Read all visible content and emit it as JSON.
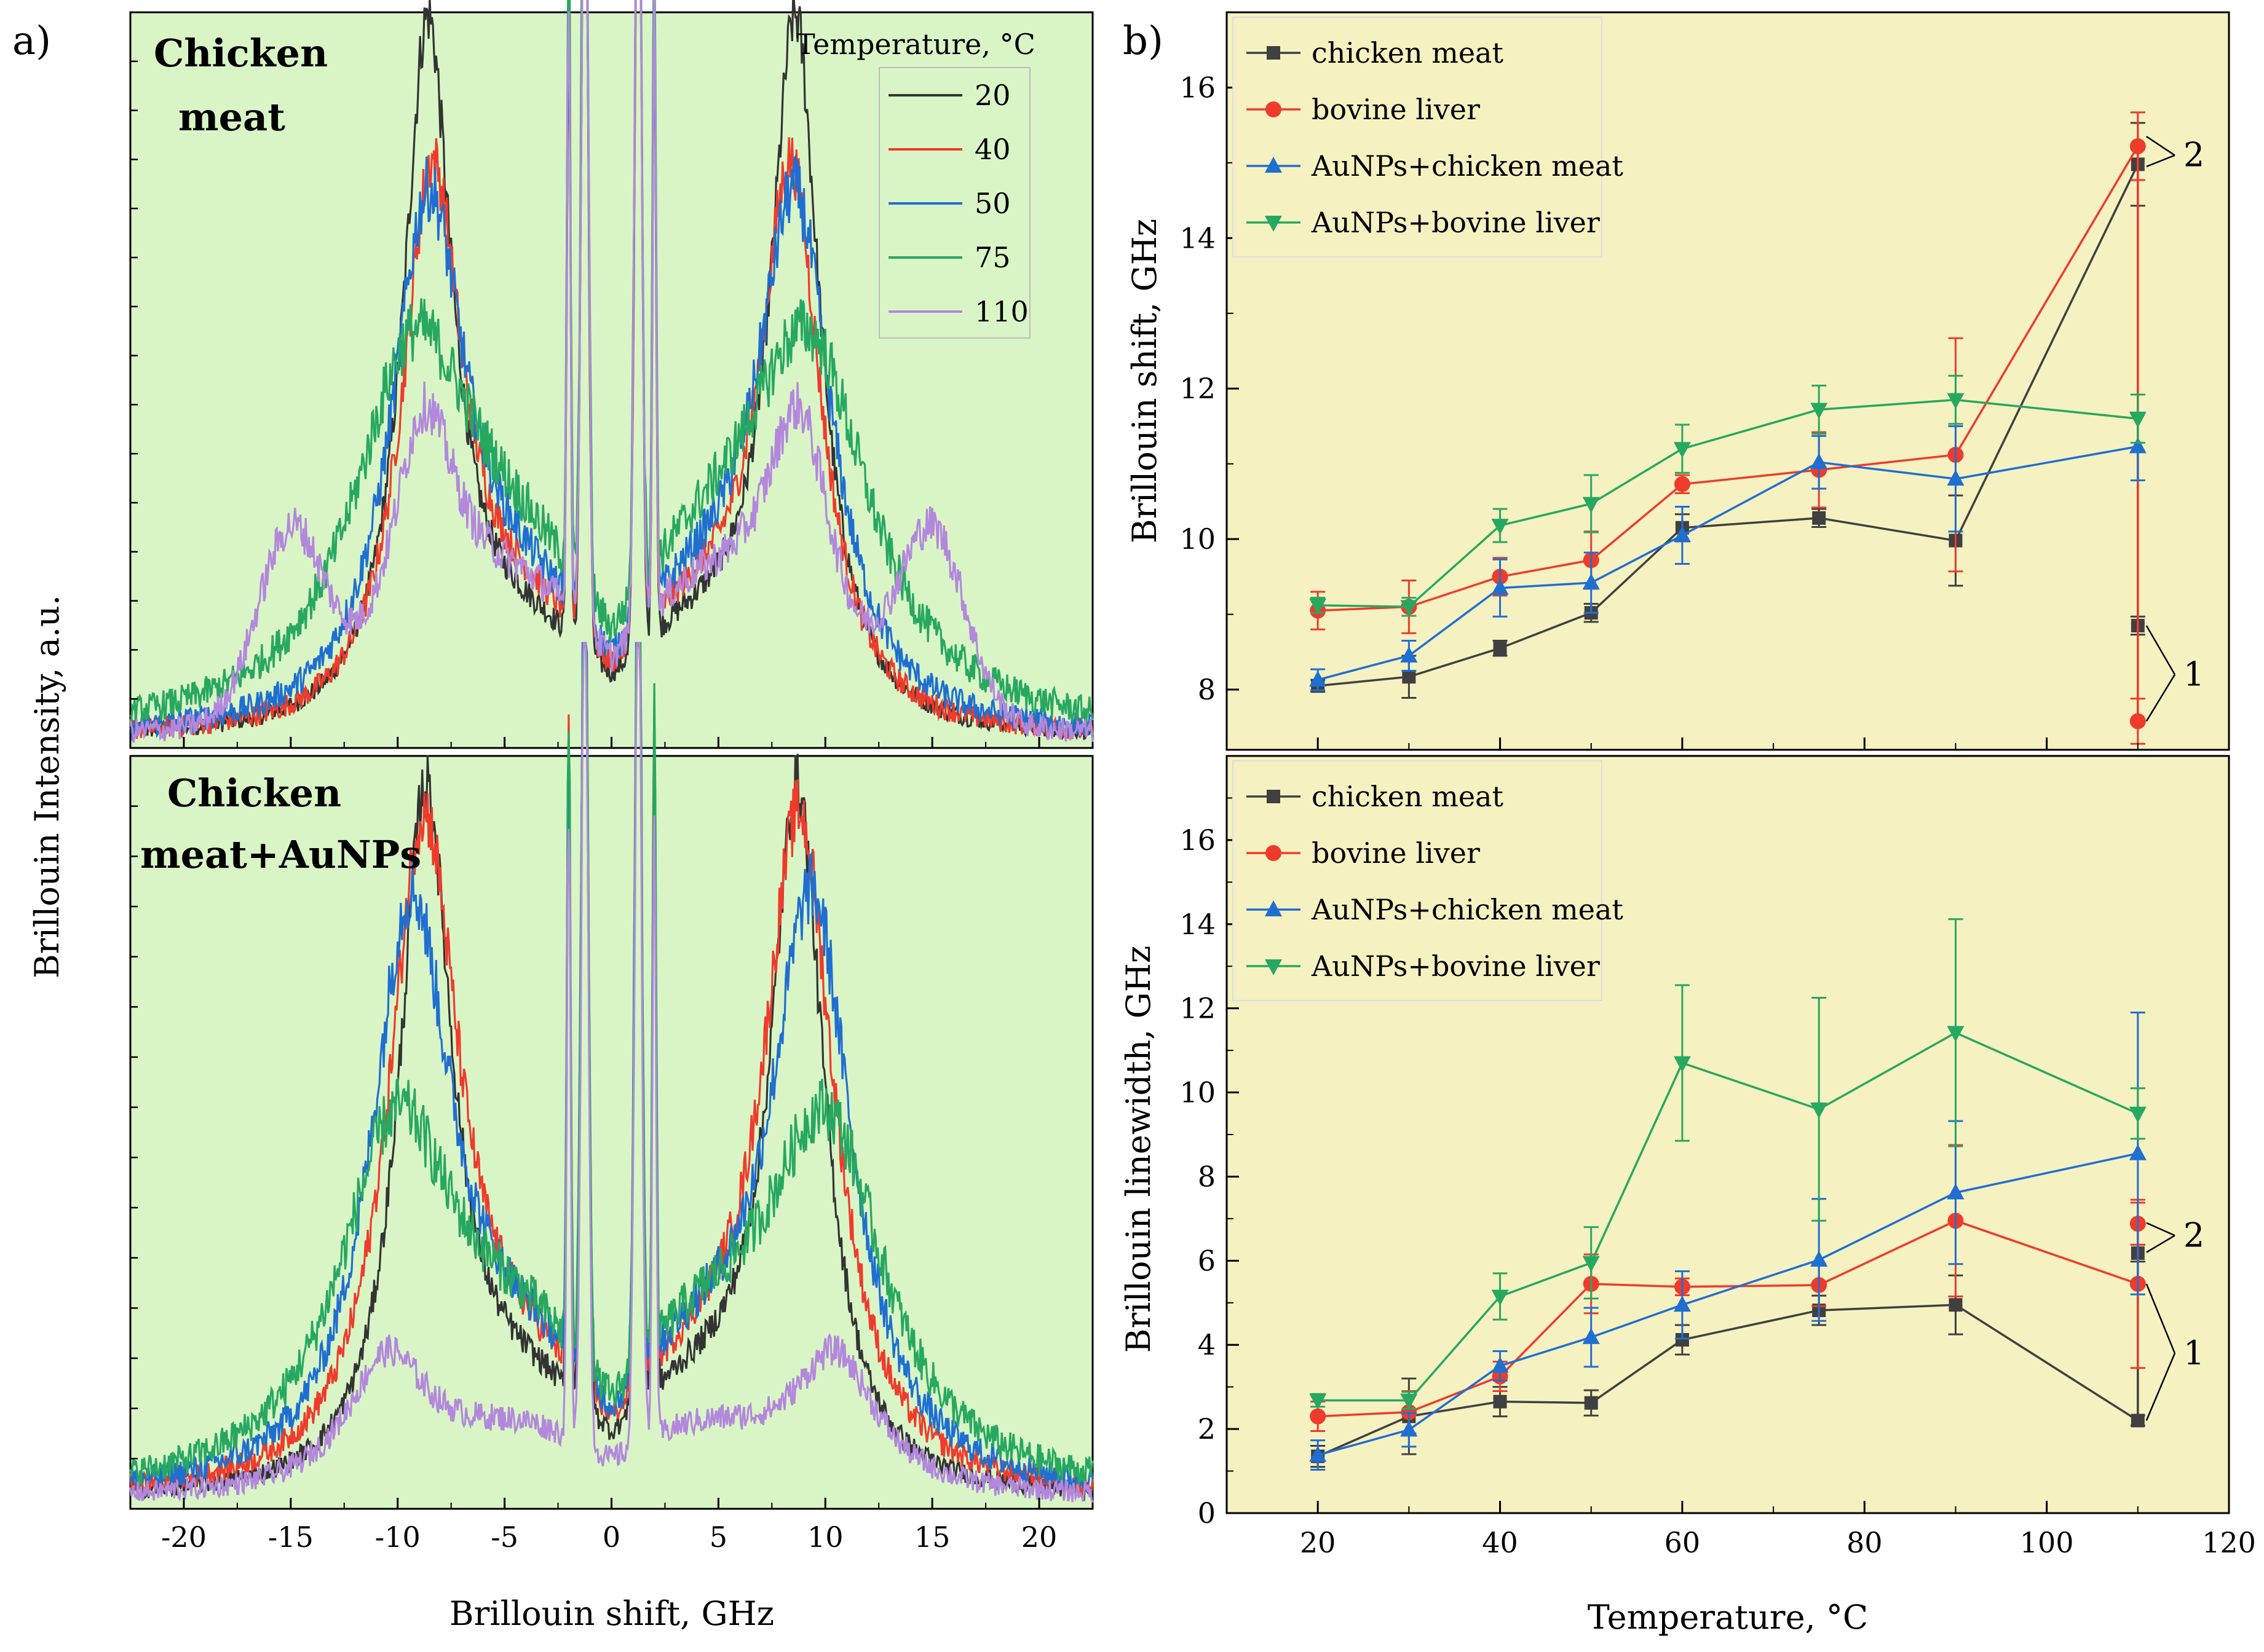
{
  "figure": {
    "panel_a_label": "a)",
    "panel_b_label": "b)"
  },
  "chart_data": [
    {
      "id": "a-top",
      "type": "line",
      "title": "Chicken meat",
      "title_lines": [
        "Chicken",
        "meat"
      ],
      "xlabel": "Brillouin shift, GHz",
      "ylabel": "Brillouin  Intensity, a.u.",
      "xlim": [
        -22.5,
        22.5
      ],
      "ylim": [
        0,
        1
      ],
      "xticks": [
        -20,
        -15,
        -10,
        -5,
        0,
        5,
        10,
        15,
        20
      ],
      "legend_title": "Temperature, °C",
      "colors": {
        "background": "#d9f5c6"
      },
      "series": [
        {
          "name": "20",
          "color": "#333333",
          "peak_pos": 8.6,
          "peak_h": 0.93,
          "width": 1.4,
          "bg": 0.12,
          "noise": 0.03
        },
        {
          "name": "40",
          "color": "#ef3b2c",
          "peak_pos": 8.4,
          "peak_h": 0.72,
          "width": 1.7,
          "bg": 0.14,
          "noise": 0.035
        },
        {
          "name": "50",
          "color": "#1f6fd1",
          "peak_pos": 8.6,
          "peak_h": 0.68,
          "width": 2.1,
          "bg": 0.15,
          "noise": 0.04
        },
        {
          "name": "75",
          "color": "#27a860",
          "peak_pos": 9.3,
          "peak_h": 0.5,
          "width": 3.6,
          "bg": 0.16,
          "noise": 0.045
        },
        {
          "name": "110",
          "color": "#b388dc",
          "peak_pos": 8.8,
          "peak_h": 0.38,
          "width": 2.0,
          "bg": 0.17,
          "noise": 0.04,
          "sat_pos": 15.0,
          "sat_h": 0.25
        }
      ]
    },
    {
      "id": "a-bottom",
      "type": "line",
      "title": "Chicken meat+AuNPs",
      "title_lines": [
        "Chicken",
        "meat+AuNPs"
      ],
      "xlabel": "Brillouin shift, GHz",
      "xlim": [
        -22.5,
        22.5
      ],
      "ylim": [
        0,
        1
      ],
      "xticks": [
        -20,
        -15,
        -10,
        -5,
        0,
        5,
        10,
        15,
        20
      ],
      "colors": {
        "background": "#d9f5c6"
      },
      "series": [
        {
          "name": "20",
          "color": "#333333",
          "peak_pos": 8.7,
          "peak_h": 0.9,
          "width": 1.5,
          "bg": 0.12,
          "noise": 0.03
        },
        {
          "name": "40",
          "color": "#ef3b2c",
          "peak_pos": 8.8,
          "peak_h": 0.86,
          "width": 2.0,
          "bg": 0.13,
          "noise": 0.035
        },
        {
          "name": "50",
          "color": "#1f6fd1",
          "peak_pos": 9.4,
          "peak_h": 0.76,
          "width": 2.3,
          "bg": 0.15,
          "noise": 0.04
        },
        {
          "name": "75",
          "color": "#27a860",
          "peak_pos": 10.1,
          "peak_h": 0.48,
          "width": 3.4,
          "bg": 0.16,
          "noise": 0.045
        },
        {
          "name": "110",
          "color": "#b388dc",
          "peak_pos": 10.5,
          "peak_h": 0.18,
          "width": 2.4,
          "bg": 0.08,
          "noise": 0.035
        }
      ]
    },
    {
      "id": "b-top",
      "type": "line",
      "xlabel": "",
      "ylabel": "Brillouin shift, GHz",
      "xlim": [
        10,
        120
      ],
      "ylim": [
        7.2,
        17.0
      ],
      "xticks": [
        20,
        40,
        60,
        80,
        100,
        120
      ],
      "yticks": [
        8,
        10,
        12,
        14,
        16
      ],
      "colors": {
        "background": "#f6f1c1"
      },
      "annotations": [
        {
          "text": "2",
          "x": 115,
          "y": 15.1
        },
        {
          "text": "1",
          "x": 115,
          "y": 8.2
        }
      ],
      "series": [
        {
          "name": "chicken meat",
          "color": "#404040",
          "marker": "square",
          "x": [
            20,
            30,
            40,
            50,
            60,
            75,
            90,
            110
          ],
          "y": [
            8.05,
            8.17,
            8.55,
            9.02,
            10.15,
            10.28,
            9.98,
            14.98
          ],
          "err": [
            0.08,
            0.28,
            0.1,
            0.12,
            0.18,
            0.12,
            0.6,
            0.55
          ],
          "extra": {
            "x": 110,
            "y": 8.85,
            "err": 0.12
          }
        },
        {
          "name": "bovine liver",
          "color": "#ef3b2c",
          "marker": "circle",
          "x": [
            20,
            30,
            40,
            50,
            60,
            75,
            90,
            110
          ],
          "y": [
            9.05,
            9.1,
            9.5,
            9.72,
            10.73,
            10.92,
            11.12,
            15.22
          ],
          "err": [
            0.25,
            0.35,
            0.25,
            0.38,
            0.12,
            0.5,
            1.55,
            0.45
          ],
          "extra": {
            "x": 110,
            "y": 7.58,
            "err": 0.3
          }
        },
        {
          "name": "AuNPs+chicken meat",
          "color": "#1f6fd1",
          "marker": "triangle-up",
          "x": [
            20,
            30,
            40,
            50,
            60,
            75,
            90,
            110
          ],
          "y": [
            8.13,
            8.45,
            9.35,
            9.42,
            10.05,
            11.02,
            10.8,
            11.23
          ],
          "err": [
            0.14,
            0.2,
            0.38,
            0.4,
            0.38,
            0.35,
            0.7,
            0.45
          ]
        },
        {
          "name": "AuNPs+bovine liver",
          "color": "#27a860",
          "marker": "triangle-down",
          "x": [
            20,
            30,
            40,
            50,
            60,
            75,
            90,
            110
          ],
          "y": [
            9.12,
            9.1,
            10.18,
            10.47,
            11.2,
            11.72,
            11.85,
            11.6
          ],
          "err": [
            0.1,
            0.12,
            0.22,
            0.38,
            0.32,
            0.32,
            0.32,
            0.32
          ]
        }
      ]
    },
    {
      "id": "b-bottom",
      "type": "line",
      "xlabel": "Temperature, °C",
      "ylabel": "Brillouin linewidth, GHz",
      "xlim": [
        10,
        120
      ],
      "ylim": [
        0,
        18
      ],
      "xticks": [
        20,
        40,
        60,
        80,
        100,
        120
      ],
      "yticks": [
        0,
        2,
        4,
        6,
        8,
        10,
        12,
        14,
        16
      ],
      "colors": {
        "background": "#f6f1c1"
      },
      "annotations": [
        {
          "text": "2",
          "x": 115,
          "y": 6.6
        },
        {
          "text": "1",
          "x": 115,
          "y": 3.8
        }
      ],
      "series": [
        {
          "name": "chicken meat",
          "color": "#404040",
          "marker": "square",
          "x": [
            20,
            30,
            40,
            50,
            60,
            75,
            90,
            110
          ],
          "y": [
            1.35,
            2.3,
            2.65,
            2.62,
            4.12,
            4.82,
            4.95,
            2.2
          ],
          "err": [
            0.25,
            0.9,
            0.35,
            0.3,
            0.35,
            0.35,
            0.7,
            0.12
          ],
          "extra": {
            "x": 110,
            "y": 6.18,
            "err": 0.2
          }
        },
        {
          "name": "bovine liver",
          "color": "#ef3b2c",
          "marker": "circle",
          "x": [
            20,
            30,
            40,
            50,
            60,
            75,
            90,
            110
          ],
          "y": [
            2.3,
            2.4,
            3.25,
            5.45,
            5.38,
            5.42,
            6.95,
            5.45
          ],
          "err": [
            0.35,
            0.5,
            0.35,
            0.7,
            0.2,
            0.5,
            1.8,
            2.0
          ],
          "extra": {
            "x": 110,
            "y": 6.88,
            "err": 0.5
          }
        },
        {
          "name": "AuNPs+chicken meat",
          "color": "#1f6fd1",
          "marker": "triangle-up",
          "x": [
            20,
            30,
            40,
            50,
            60,
            75,
            90,
            110
          ],
          "y": [
            1.38,
            1.98,
            3.5,
            4.18,
            4.95,
            6.02,
            7.62,
            8.55
          ],
          "err": [
            0.35,
            0.4,
            0.35,
            0.7,
            0.8,
            1.45,
            1.7,
            3.35
          ]
        },
        {
          "name": "AuNPs+bovine liver",
          "color": "#27a860",
          "marker": "triangle-down",
          "x": [
            20,
            30,
            40,
            50,
            60,
            75,
            90,
            110
          ],
          "y": [
            2.68,
            2.68,
            5.15,
            5.95,
            10.7,
            9.6,
            11.42,
            9.5
          ],
          "err": [
            0.15,
            0.2,
            0.55,
            0.85,
            1.85,
            2.65,
            2.7,
            0.6
          ]
        }
      ]
    }
  ]
}
